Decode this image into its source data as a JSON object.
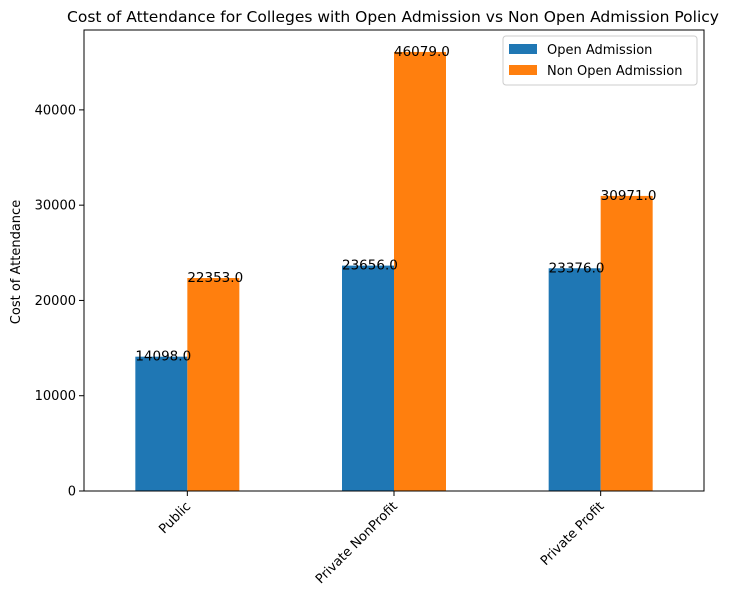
{
  "chart_data": {
    "type": "bar",
    "title": "Cost of Attendance for Colleges with Open Admission vs Non Open Admission Policy",
    "xlabel": "",
    "ylabel": "Cost of Attendance",
    "categories": [
      "Public",
      "Private NonProfit",
      "Private Profit"
    ],
    "series": [
      {
        "name": "Open Admission",
        "color": "#1f77b4",
        "values": [
          14098.0,
          23656.0,
          23376.0
        ]
      },
      {
        "name": "Non Open Admission",
        "color": "#ff7f0e",
        "values": [
          22353.0,
          46079.0,
          30971.0
        ]
      }
    ],
    "value_labels": [
      [
        "14098.0",
        "23656.0",
        "23376.0"
      ],
      [
        "22353.0",
        "46079.0",
        "30971.0"
      ]
    ],
    "ylim": [
      0,
      48384
    ],
    "yticks": [
      0,
      10000,
      20000,
      30000,
      40000
    ],
    "ytick_labels": [
      "0",
      "10000",
      "20000",
      "30000",
      "40000"
    ],
    "xtick_rotation": 45,
    "grid": false,
    "legend_position": "top-right"
  }
}
